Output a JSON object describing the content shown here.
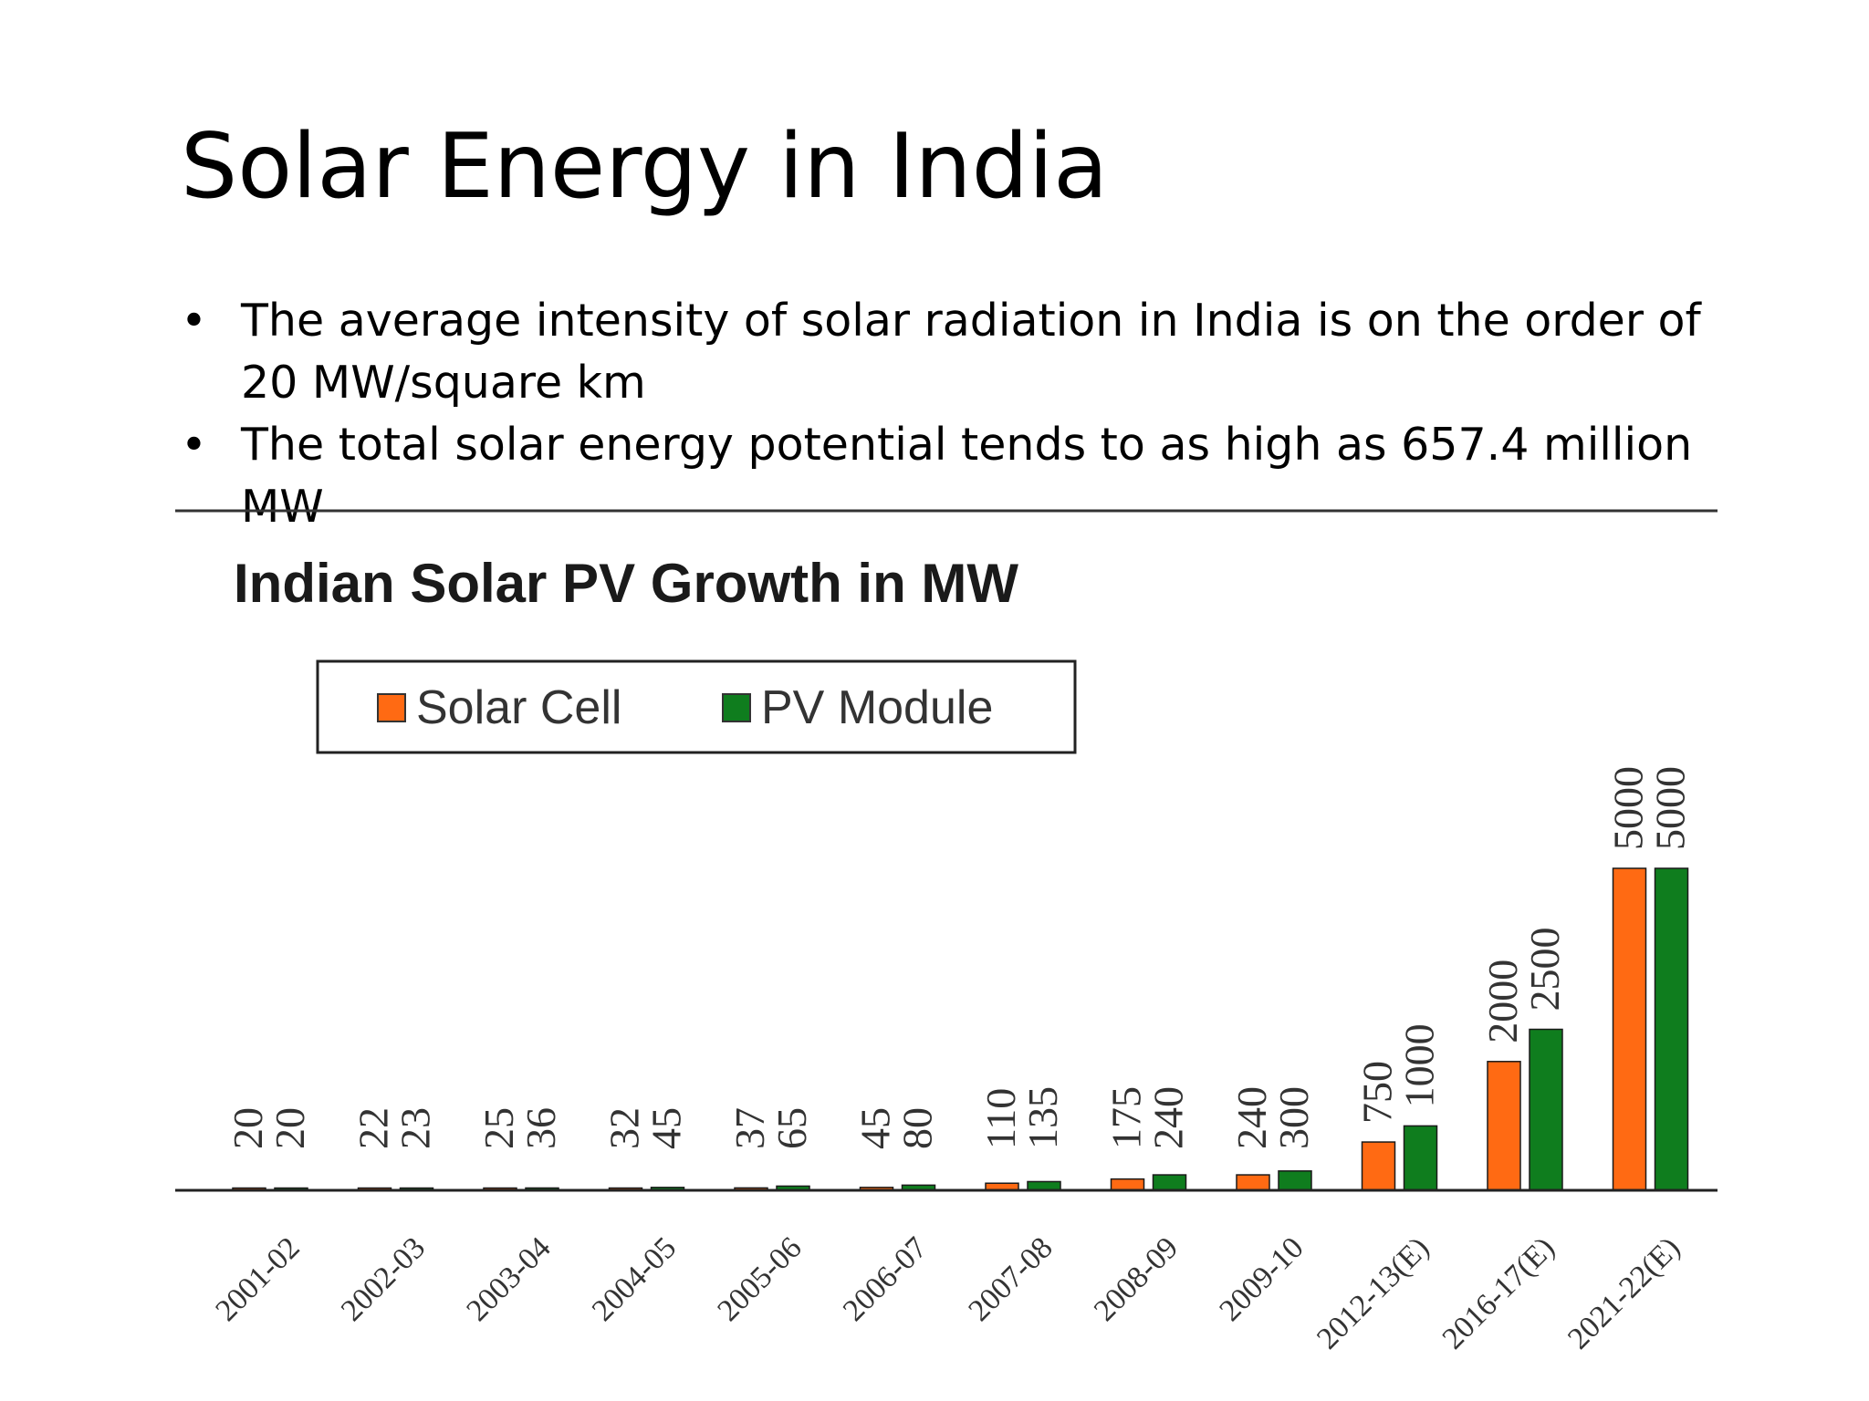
{
  "slide": {
    "title": "Solar Energy in India",
    "bullets": [
      "The average intensity of solar radiation in India is on the order of 20 MW/square km",
      "The total solar energy potential tends to as high as 657.4 million MW"
    ],
    "bullet_glyph": "•"
  },
  "chart_data": {
    "type": "bar",
    "title": "Indian Solar PV Growth in MW",
    "xlabel": "",
    "ylabel": "",
    "categories": [
      "2001-02",
      "2002-03",
      "2003-04",
      "2004-05",
      "2005-06",
      "2006-07",
      "2007-08",
      "2008-09",
      "2009-10",
      "2012-13(E)",
      "2016-17(E)",
      "2021-22(E)"
    ],
    "series": [
      {
        "name": "Solar Cell",
        "color": "#ff6a13",
        "values": [
          20,
          22,
          25,
          32,
          37,
          45,
          110,
          175,
          240,
          750,
          2000,
          5000
        ]
      },
      {
        "name": "PV Module",
        "color": "#0f7d1e",
        "values": [
          20,
          23,
          36,
          45,
          65,
          80,
          135,
          240,
          300,
          1000,
          2500,
          5000
        ]
      }
    ],
    "ylim": [
      0,
      5000
    ],
    "grid": false,
    "legend": "top-left",
    "data_labels": true
  }
}
